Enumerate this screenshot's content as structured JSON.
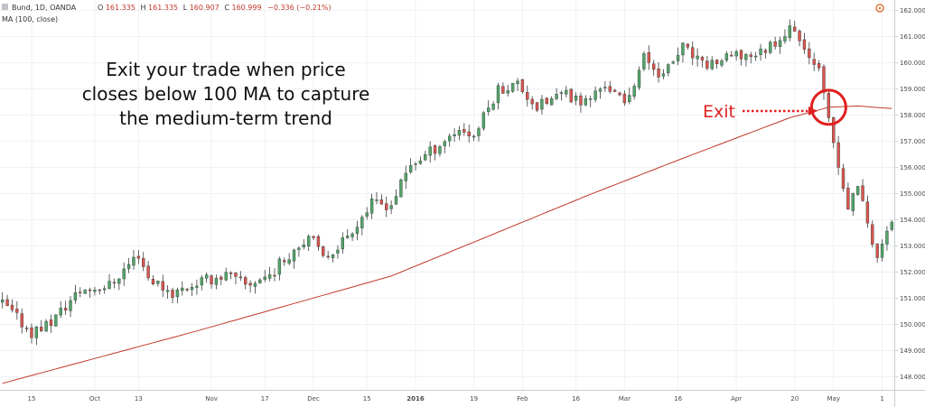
{
  "chart_data": {
    "type": "candlestick",
    "title": "Bund, 1D, OANDA",
    "ohlc_readout": {
      "o_label": "O",
      "o": "161.335",
      "h_label": "H",
      "h": "161.335",
      "l_label": "L",
      "l": "160.907",
      "c_label": "C",
      "c": "160.999",
      "change": "−0.336 (−0.21%)"
    },
    "indicator_label": "MA (100, close)",
    "annotation": [
      "Exit your trade when price",
      "closes below 100 MA to capture",
      "the medium-term trend"
    ],
    "exit_label": "Exit",
    "ylim": [
      147.5,
      162.4
    ],
    "y_ticks": [
      "162.000",
      "161.000",
      "160.000",
      "159.000",
      "158.000",
      "157.000",
      "156.000",
      "155.000",
      "154.000",
      "153.000",
      "152.000",
      "151.000",
      "150.000",
      "149.000",
      "148.000"
    ],
    "x_ticks": [
      {
        "label": "15",
        "bar": 6,
        "bold": false
      },
      {
        "label": "Oct",
        "bar": 19,
        "bold": false
      },
      {
        "label": "13",
        "bar": 28,
        "bold": false
      },
      {
        "label": "Nov",
        "bar": 43,
        "bold": false
      },
      {
        "label": "17",
        "bar": 54,
        "bold": false
      },
      {
        "label": "Dec",
        "bar": 64,
        "bold": false
      },
      {
        "label": "15",
        "bar": 75,
        "bold": false
      },
      {
        "label": "2016",
        "bar": 85,
        "bold": true
      },
      {
        "label": "19",
        "bar": 97,
        "bold": false
      },
      {
        "label": "Feb",
        "bar": 107,
        "bold": false
      },
      {
        "label": "16",
        "bar": 118,
        "bold": false
      },
      {
        "label": "Mar",
        "bar": 128,
        "bold": false
      },
      {
        "label": "16",
        "bar": 139,
        "bold": false
      },
      {
        "label": "Apr",
        "bar": 151,
        "bold": false
      },
      {
        "label": "20",
        "bar": 163,
        "bold": false
      },
      {
        "label": "May",
        "bar": 171,
        "bold": false
      },
      {
        "label": "1",
        "bar": 181,
        "bold": false
      }
    ],
    "ma_anchors": [
      [
        0,
        147.75
      ],
      [
        40,
        149.75
      ],
      [
        80,
        151.85
      ],
      [
        120,
        154.9
      ],
      [
        140,
        156.35
      ],
      [
        162,
        157.9
      ],
      [
        170,
        158.3
      ],
      [
        176,
        158.35
      ],
      [
        183,
        158.25
      ]
    ],
    "exit_bar": 170,
    "bar_count": 184,
    "price_anchors": [
      [
        0,
        150.8
      ],
      [
        6,
        149.7
      ],
      [
        10,
        150.1
      ],
      [
        16,
        151.3
      ],
      [
        22,
        151.5
      ],
      [
        28,
        152.7
      ],
      [
        30,
        151.8
      ],
      [
        35,
        151.2
      ],
      [
        40,
        151.6
      ],
      [
        46,
        151.9
      ],
      [
        50,
        151.5
      ],
      [
        55,
        151.9
      ],
      [
        60,
        152.9
      ],
      [
        63,
        153.4
      ],
      [
        66,
        152.5
      ],
      [
        70,
        153.2
      ],
      [
        76,
        154.6
      ],
      [
        80,
        154.6
      ],
      [
        84,
        156.1
      ],
      [
        88,
        156.6
      ],
      [
        94,
        157.5
      ],
      [
        97,
        157.2
      ],
      [
        102,
        159.0
      ],
      [
        106,
        159.2
      ],
      [
        110,
        158.3
      ],
      [
        115,
        158.8
      ],
      [
        120,
        158.5
      ],
      [
        124,
        159.2
      ],
      [
        128,
        158.4
      ],
      [
        132,
        160.2
      ],
      [
        136,
        159.5
      ],
      [
        140,
        160.6
      ],
      [
        144,
        159.9
      ],
      [
        150,
        160.2
      ],
      [
        156,
        160.4
      ],
      [
        160,
        161.0
      ],
      [
        163,
        161.4
      ],
      [
        165,
        160.3
      ],
      [
        168,
        160.0
      ],
      [
        170,
        158.1
      ],
      [
        172,
        156.2
      ],
      [
        174,
        154.6
      ],
      [
        176,
        155.4
      ],
      [
        178,
        153.8
      ],
      [
        180,
        152.6
      ],
      [
        182,
        153.4
      ],
      [
        183,
        154.0
      ]
    ]
  }
}
